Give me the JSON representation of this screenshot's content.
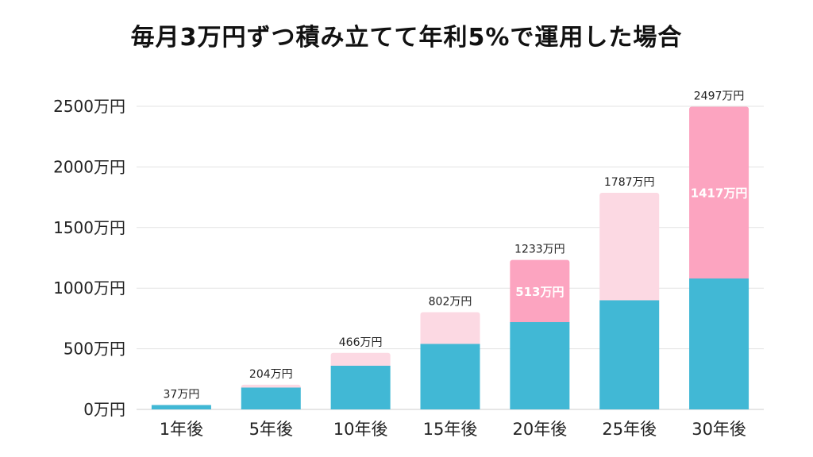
{
  "chart_data": {
    "type": "bar",
    "stacked": true,
    "title": "毎月3万円ずつ積み立てて年利5%で運用した場合",
    "unit": "万円",
    "categories": [
      "1年後",
      "5年後",
      "10年後",
      "15年後",
      "20年後",
      "25年後",
      "30年後"
    ],
    "totals": [
      37,
      204,
      466,
      802,
      1233,
      1787,
      2497
    ],
    "total_labels": [
      "37万円",
      "204万円",
      "466万円",
      "802万円",
      "1233万円",
      "1787万円",
      "2497万円"
    ],
    "series": [
      {
        "values": [
          36,
          180,
          360,
          540,
          720,
          900,
          1080
        ],
        "color": "#41b8d5"
      },
      {
        "values": [
          1,
          24,
          106,
          262,
          513,
          887,
          1417
        ],
        "colors": [
          "#fcd9e3",
          "#fcd9e3",
          "#fcd9e3",
          "#fcd9e3",
          "#fca4c0",
          "#fcd9e3",
          "#fca4c0"
        ]
      }
    ],
    "gain_labels": [
      "",
      "",
      "",
      "",
      "513万円",
      "",
      "1417万円"
    ],
    "yticks": [
      "0万円",
      "500万円",
      "1000万円",
      "1500万円",
      "2000万円",
      "2500万円"
    ],
    "ytick_values": [
      0,
      500,
      1000,
      1500,
      2000,
      2500
    ],
    "ylim": [
      0,
      2500
    ],
    "grid": true,
    "legend": "none"
  }
}
